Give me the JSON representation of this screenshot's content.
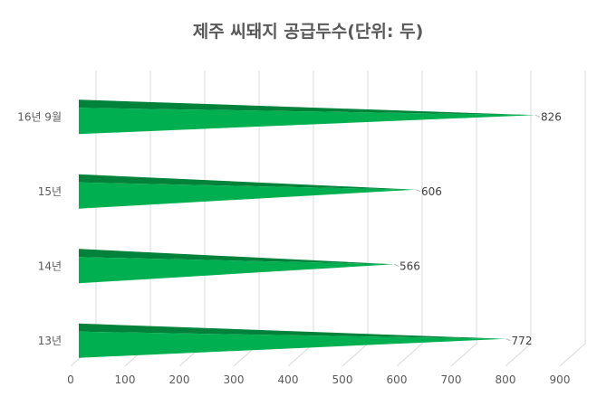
{
  "chart_data": {
    "type": "bar",
    "orientation": "horizontal",
    "style": "3d-cone",
    "title": "제주 씨돼지 공급두수(단위: 두)",
    "categories": [
      "16년 9월",
      "15년",
      "14년",
      "13년"
    ],
    "values": [
      826,
      606,
      566,
      772
    ],
    "xlim": [
      0,
      900
    ],
    "xticks": [
      0,
      100,
      200,
      300,
      400,
      500,
      600,
      700,
      800,
      900
    ],
    "grid": true,
    "legend": "none",
    "data_labels": true,
    "colors": {
      "bar_light": "#00b050",
      "bar_dark": "#00823a",
      "grid": "#d9d9d9",
      "text": "#595959"
    }
  }
}
